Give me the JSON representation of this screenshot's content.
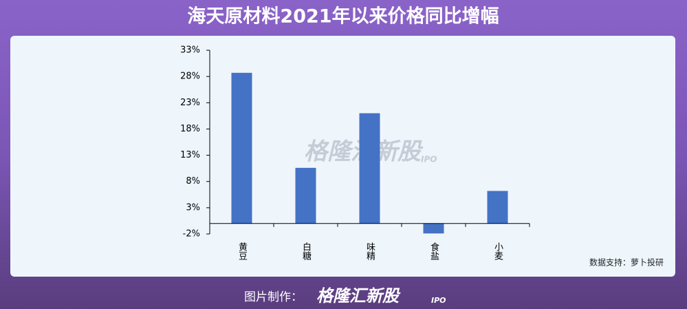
{
  "chart_data": {
    "type": "bar",
    "title": "海天原材料2021年以来价格同比增幅",
    "categories": [
      "黄豆",
      "白糖",
      "味精",
      "食盐",
      "小麦"
    ],
    "values": [
      28.7,
      10.6,
      21.0,
      -1.9,
      6.2
    ],
    "color": "#4472c4",
    "ylim": [
      -2,
      33
    ],
    "yticks": [
      {
        "value": -2,
        "label": "-2%"
      },
      {
        "value": 3,
        "label": "3%"
      },
      {
        "value": 8,
        "label": "8%"
      },
      {
        "value": 13,
        "label": "13%"
      },
      {
        "value": 18,
        "label": "18%"
      },
      {
        "value": 23,
        "label": "23%"
      },
      {
        "value": 28,
        "label": "28%"
      },
      {
        "value": 33,
        "label": "33%"
      }
    ],
    "grid": false,
    "source": "数据支持：萝卜投研",
    "watermark": "格隆汇新股",
    "watermark_suffix": "IPO"
  },
  "footer": {
    "label": "图片制作：",
    "brand": "格隆汇新股",
    "brand_suffix": "IPO"
  }
}
